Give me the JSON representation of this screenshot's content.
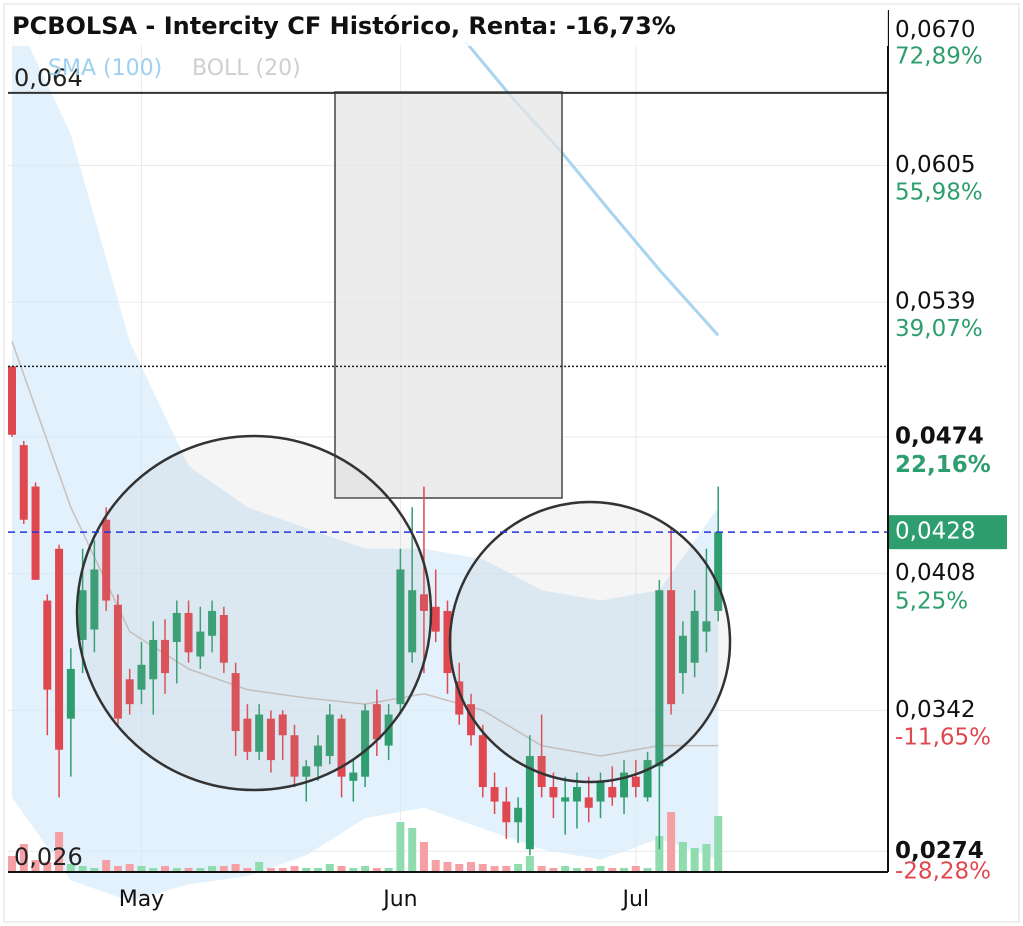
{
  "chart_data": {
    "type": "candlestick",
    "title": "PCBOLSA - Intercity CF Histórico, Renta: -16,73%",
    "legend": [
      "SMA (100)",
      "BOLL (20)"
    ],
    "categories": [
      null,
      null,
      null,
      null,
      null,
      null,
      null,
      null,
      null,
      null,
      null,
      "May",
      null,
      null,
      null,
      null,
      null,
      null,
      null,
      null,
      null,
      null,
      null,
      null,
      null,
      null,
      null,
      null,
      null,
      null,
      null,
      null,
      null,
      "Jun",
      null,
      null,
      null,
      null,
      null,
      null,
      null,
      null,
      null,
      null,
      null,
      null,
      null,
      null,
      null,
      null,
      null,
      null,
      null,
      "Jul",
      null,
      null,
      null,
      null,
      null,
      null,
      null
    ],
    "open": [
      0.0508,
      0.047,
      0.045,
      0.0395,
      0.042,
      0.0338,
      0.0376,
      0.0381,
      0.0434,
      0.0393,
      0.0357,
      0.0352,
      0.0357,
      0.0376,
      0.0375,
      0.0389,
      0.0368,
      0.0378,
      0.0388,
      0.036,
      0.0338,
      0.0322,
      0.0338,
      0.034,
      0.033,
      0.031,
      0.0315,
      0.032,
      0.0338,
      0.0308,
      0.031,
      0.0345,
      0.0325,
      0.0345,
      0.037,
      0.0398,
      0.0392,
      0.039,
      0.0356,
      0.0345,
      0.033,
      0.0305,
      0.0298,
      0.0288,
      0.0275,
      0.032,
      0.0305,
      0.0298,
      0.0298,
      0.03,
      0.0298,
      0.0305,
      0.03,
      0.031,
      0.03,
      0.0315,
      0.04,
      0.036,
      0.0365,
      0.038,
      0.039
    ],
    "high": [
      0.0508,
      0.0472,
      0.0452,
      0.0398,
      0.0422,
      0.0372,
      0.042,
      0.0424,
      0.044,
      0.0398,
      0.0362,
      0.0375,
      0.0385,
      0.0386,
      0.0395,
      0.0395,
      0.0392,
      0.0395,
      0.0392,
      0.0365,
      0.0345,
      0.0345,
      0.0342,
      0.0342,
      0.0335,
      0.0318,
      0.033,
      0.0345,
      0.034,
      0.0318,
      0.0345,
      0.0352,
      0.0345,
      0.042,
      0.044,
      0.045,
      0.041,
      0.0395,
      0.0365,
      0.035,
      0.0335,
      0.0312,
      0.0305,
      0.03,
      0.033,
      0.034,
      0.0312,
      0.031,
      0.0312,
      0.031,
      0.0312,
      0.0315,
      0.0318,
      0.0318,
      0.0322,
      0.0405,
      0.043,
      0.0385,
      0.04,
      0.042,
      0.045
    ],
    "low": [
      0.0474,
      0.0432,
      0.0405,
      0.033,
      0.03,
      0.031,
      0.036,
      0.037,
      0.039,
      0.0335,
      0.034,
      0.0345,
      0.034,
      0.035,
      0.0355,
      0.0365,
      0.0362,
      0.037,
      0.036,
      0.032,
      0.0318,
      0.0318,
      0.0312,
      0.0318,
      0.0305,
      0.0298,
      0.0308,
      0.0316,
      0.03,
      0.0298,
      0.0305,
      0.032,
      0.0318,
      0.034,
      0.0365,
      0.036,
      0.0375,
      0.035,
      0.0335,
      0.0325,
      0.03,
      0.0292,
      0.028,
      0.0278,
      0.0272,
      0.03,
      0.029,
      0.0282,
      0.0285,
      0.0288,
      0.029,
      0.0296,
      0.0292,
      0.03,
      0.0298,
      0.0275,
      0.034,
      0.035,
      0.0358,
      0.037,
      0.0385
    ],
    "close": [
      0.0475,
      0.0434,
      0.0405,
      0.0352,
      0.0323,
      0.0362,
      0.04,
      0.041,
      0.0395,
      0.0338,
      0.0345,
      0.0364,
      0.0376,
      0.036,
      0.0389,
      0.037,
      0.038,
      0.039,
      0.0365,
      0.0332,
      0.0322,
      0.034,
      0.0318,
      0.033,
      0.031,
      0.0315,
      0.0325,
      0.034,
      0.031,
      0.0312,
      0.0342,
      0.0328,
      0.034,
      0.041,
      0.04,
      0.039,
      0.038,
      0.036,
      0.034,
      0.033,
      0.0305,
      0.0298,
      0.0288,
      0.0295,
      0.032,
      0.0305,
      0.03,
      0.03,
      0.0305,
      0.0295,
      0.0308,
      0.03,
      0.0312,
      0.0305,
      0.0318,
      0.04,
      0.0345,
      0.0378,
      0.039,
      0.0385,
      0.0428
    ],
    "volume": [
      8,
      14,
      6,
      5,
      20,
      4,
      3,
      2,
      6,
      3,
      4,
      3,
      2,
      3,
      2,
      2,
      2,
      3,
      3,
      4,
      2,
      5,
      2,
      2,
      3,
      2,
      2,
      4,
      3,
      2,
      3,
      2,
      2,
      25,
      22,
      15,
      6,
      5,
      4,
      5,
      4,
      3,
      3,
      4,
      8,
      3,
      2,
      3,
      2,
      2,
      3,
      2,
      2,
      3,
      2,
      18,
      30,
      15,
      12,
      14,
      28
    ],
    "up_color": "#2e9e6e",
    "down_color": "#e0484f",
    "bollinger": {
      "x": [
        0,
        5,
        10,
        15,
        20,
        25,
        30,
        35,
        40,
        45,
        50,
        55,
        60
      ],
      "upper": [
        0.068,
        0.062,
        0.052,
        0.046,
        0.044,
        0.043,
        0.042,
        0.042,
        0.0415,
        0.04,
        0.0395,
        0.04,
        0.044
      ],
      "middle": [
        0.052,
        0.044,
        0.038,
        0.0362,
        0.0352,
        0.0348,
        0.0345,
        0.035,
        0.0342,
        0.0325,
        0.032,
        0.0325,
        0.0325
      ],
      "lower": [
        0.03,
        0.026,
        0.025,
        0.0258,
        0.0262,
        0.0272,
        0.029,
        0.0295,
        0.0285,
        0.0275,
        0.027,
        0.028,
        0.027
      ]
    },
    "sma": {
      "x": [
        38.5,
        42.3,
        46.6,
        50.8,
        55.1,
        60
      ],
      "values": [
        0.0665,
        0.0639,
        0.0612,
        0.0583,
        0.0554,
        0.0523
      ],
      "color": "#a8d4f0"
    },
    "levels": [
      {
        "value": 0.064,
        "label": "0,064",
        "style": "solid"
      },
      {
        "value": 0.0508,
        "style": "dotted"
      },
      {
        "value": 0.0428,
        "label": "0,0428",
        "style": "dashed"
      },
      {
        "value": 0.0264,
        "label": "0,026",
        "style": "none"
      }
    ],
    "ylim": [
      0.0264,
      0.068
    ],
    "yticks": [
      {
        "value": 0.067,
        "label": "0,0670"
      },
      {
        "value": 0.0605,
        "label": "0,0605"
      },
      {
        "value": 0.0539,
        "label": "0,0539"
      },
      {
        "value": 0.0474,
        "label": "0,0474"
      },
      {
        "value": 0.0408,
        "label": "0,0408"
      },
      {
        "value": 0.0342,
        "label": "0,0342"
      },
      {
        "value": 0.0274,
        "label": "0,0274"
      }
    ],
    "y2lim": [
      -28.29,
      78.72
    ],
    "y2ticks": [
      {
        "value": 72.89,
        "label": "72,89%"
      },
      {
        "value": 55.98,
        "label": "55,98%"
      },
      {
        "value": 39.07,
        "label": "39,07%"
      },
      {
        "value": 22.16,
        "label": "22,16%"
      },
      {
        "value": 5.25,
        "label": "5,25%"
      },
      {
        "value": -11.65,
        "label": "-11,65%"
      },
      {
        "value": -28.28,
        "label": "-28,28%"
      }
    ],
    "grid": true
  }
}
